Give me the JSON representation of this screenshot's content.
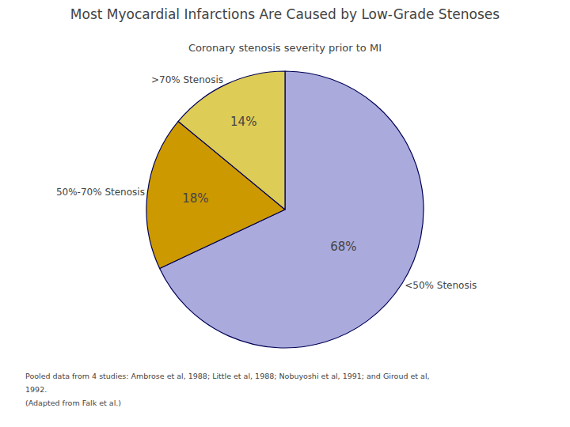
{
  "chart_data": {
    "type": "pie",
    "title": "Most Myocardial Infarctions Are Caused by Low-Grade Stenoses",
    "subtitle": "Coronary stenosis severity prior to MI",
    "categories": [
      "<50% Stenosis",
      "50%-70% Stenosis",
      ">70% Stenosis"
    ],
    "values": [
      68,
      18,
      14
    ],
    "value_labels": [
      "68%",
      "18%",
      "14%"
    ],
    "colors": [
      "#AAAADD",
      "#CC9900",
      "#DDCC55"
    ],
    "data_labels": true,
    "annotations": [
      "Pooled data from 4 studies: Ambrose et al, 1988; Little et al, 1988; Nobuyoshi et al, 1991; and Giroud et al,",
      "1992.",
      "(Adapted from Falk et al.)"
    ]
  }
}
